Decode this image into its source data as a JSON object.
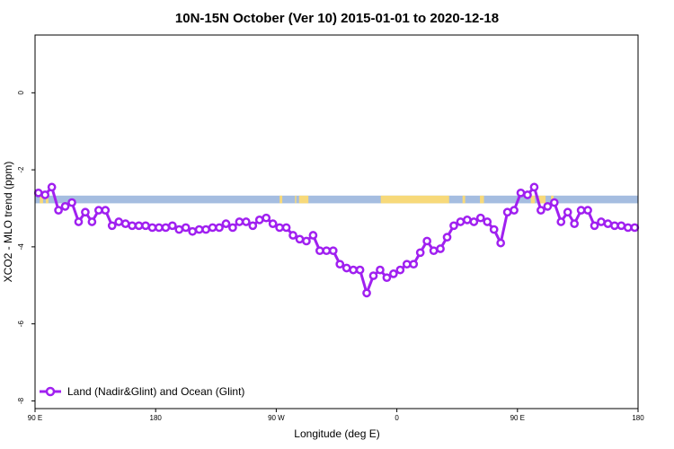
{
  "chart_data": {
    "type": "line",
    "title": "10N-15N October (Ver 10)   2015-01-01 to 2020-12-18",
    "xlabel": "Longitude (deg E)",
    "ylabel": "XCO2 - MLO trend (ppm)",
    "xlim": [
      90,
      540
    ],
    "ylim": [
      -8.2,
      1.5
    ],
    "x_ticks": [
      {
        "value": 90,
        "label": "90 E"
      },
      {
        "value": 180,
        "label": "180"
      },
      {
        "value": 270,
        "label": "90 W"
      },
      {
        "value": 360,
        "label": "0"
      },
      {
        "value": 450,
        "label": "90 E"
      },
      {
        "value": 540,
        "label": "180"
      }
    ],
    "y_ticks": [
      {
        "value": 0,
        "label": "0"
      },
      {
        "value": -2,
        "label": "-2"
      },
      {
        "value": -4,
        "label": "-4"
      },
      {
        "value": -6,
        "label": "-6"
      },
      {
        "value": -8,
        "label": "-8"
      }
    ],
    "land_ocean_band": {
      "y_range": [
        -2.67,
        -2.87
      ],
      "ocean_color": "#a5bde0",
      "land_color": "#f7d97a",
      "land_segments": [
        [
          93.5,
          96
        ],
        [
          98,
          100
        ],
        [
          272.5,
          274.5
        ],
        [
          284,
          285
        ],
        [
          287,
          294
        ],
        [
          348,
          399
        ],
        [
          409,
          411
        ],
        [
          422,
          425
        ],
        [
          460,
          463
        ],
        [
          466,
          471
        ],
        [
          475,
          477
        ]
      ]
    },
    "series": [
      {
        "name": "Land (Nadir&Glint) and Ocean (Glint)",
        "color": "#a020f0",
        "x": [
          92.5,
          97.5,
          102.5,
          107.5,
          112.5,
          117.5,
          122.5,
          127.5,
          132.5,
          137.5,
          142.5,
          147.5,
          152.5,
          157.5,
          162.5,
          167.5,
          172.5,
          177.5,
          182.5,
          187.5,
          192.5,
          197.5,
          202.5,
          207.5,
          212.5,
          217.5,
          222.5,
          227.5,
          232.5,
          237.5,
          242.5,
          247.5,
          252.5,
          257.5,
          262.5,
          267.5,
          272.5,
          277.5,
          282.5,
          287.5,
          292.5,
          297.5,
          302.5,
          307.5,
          312.5,
          317.5,
          322.5,
          327.5,
          332.5,
          337.5,
          342.5,
          347.5,
          352.5,
          357.5,
          362.5,
          367.5,
          372.5,
          377.5,
          382.5,
          387.5,
          392.5,
          397.5,
          402.5,
          407.5,
          412.5,
          417.5,
          422.5,
          427.5,
          432.5,
          437.5,
          442.5,
          447.5,
          452.5,
          457.5,
          462.5,
          467.5,
          472.5,
          477.5,
          482.5,
          487.5,
          492.5,
          497.5,
          502.5,
          507.5,
          512.5,
          517.5,
          522.5,
          527.5,
          532.5,
          537.5
        ],
        "values": [
          -2.6,
          -2.65,
          -2.45,
          -3.05,
          -2.95,
          -2.85,
          -3.35,
          -3.1,
          -3.35,
          -3.05,
          -3.05,
          -3.45,
          -3.35,
          -3.4,
          -3.45,
          -3.45,
          -3.45,
          -3.5,
          -3.5,
          -3.5,
          -3.45,
          -3.55,
          -3.5,
          -3.6,
          -3.55,
          -3.55,
          -3.5,
          -3.5,
          -3.4,
          -3.5,
          -3.35,
          -3.35,
          -3.45,
          -3.3,
          -3.25,
          -3.4,
          -3.5,
          -3.5,
          -3.7,
          -3.8,
          -3.85,
          -3.7,
          -4.1,
          -4.1,
          -4.1,
          -4.45,
          -4.55,
          -4.6,
          -4.6,
          -5.2,
          -4.75,
          -4.6,
          -4.8,
          -4.7,
          -4.6,
          -4.45,
          -4.45,
          -4.15,
          -3.85,
          -4.1,
          -4.05,
          -3.75,
          -3.45,
          -3.35,
          -3.3,
          -3.35,
          -3.25,
          -3.35,
          -3.55,
          -3.9,
          -3.1,
          -3.05,
          -2.6,
          -2.65,
          -2.45,
          -3.05,
          -2.95,
          -2.85,
          -3.35,
          -3.1,
          -3.4,
          -3.05,
          -3.05,
          -3.45,
          -3.35,
          -3.4,
          -3.45,
          -3.45,
          -3.5,
          -3.5
        ]
      }
    ],
    "legend": {
      "placement": "bottom-left",
      "label": "Land (Nadir&Glint) and Ocean (Glint)"
    },
    "grid": false
  }
}
